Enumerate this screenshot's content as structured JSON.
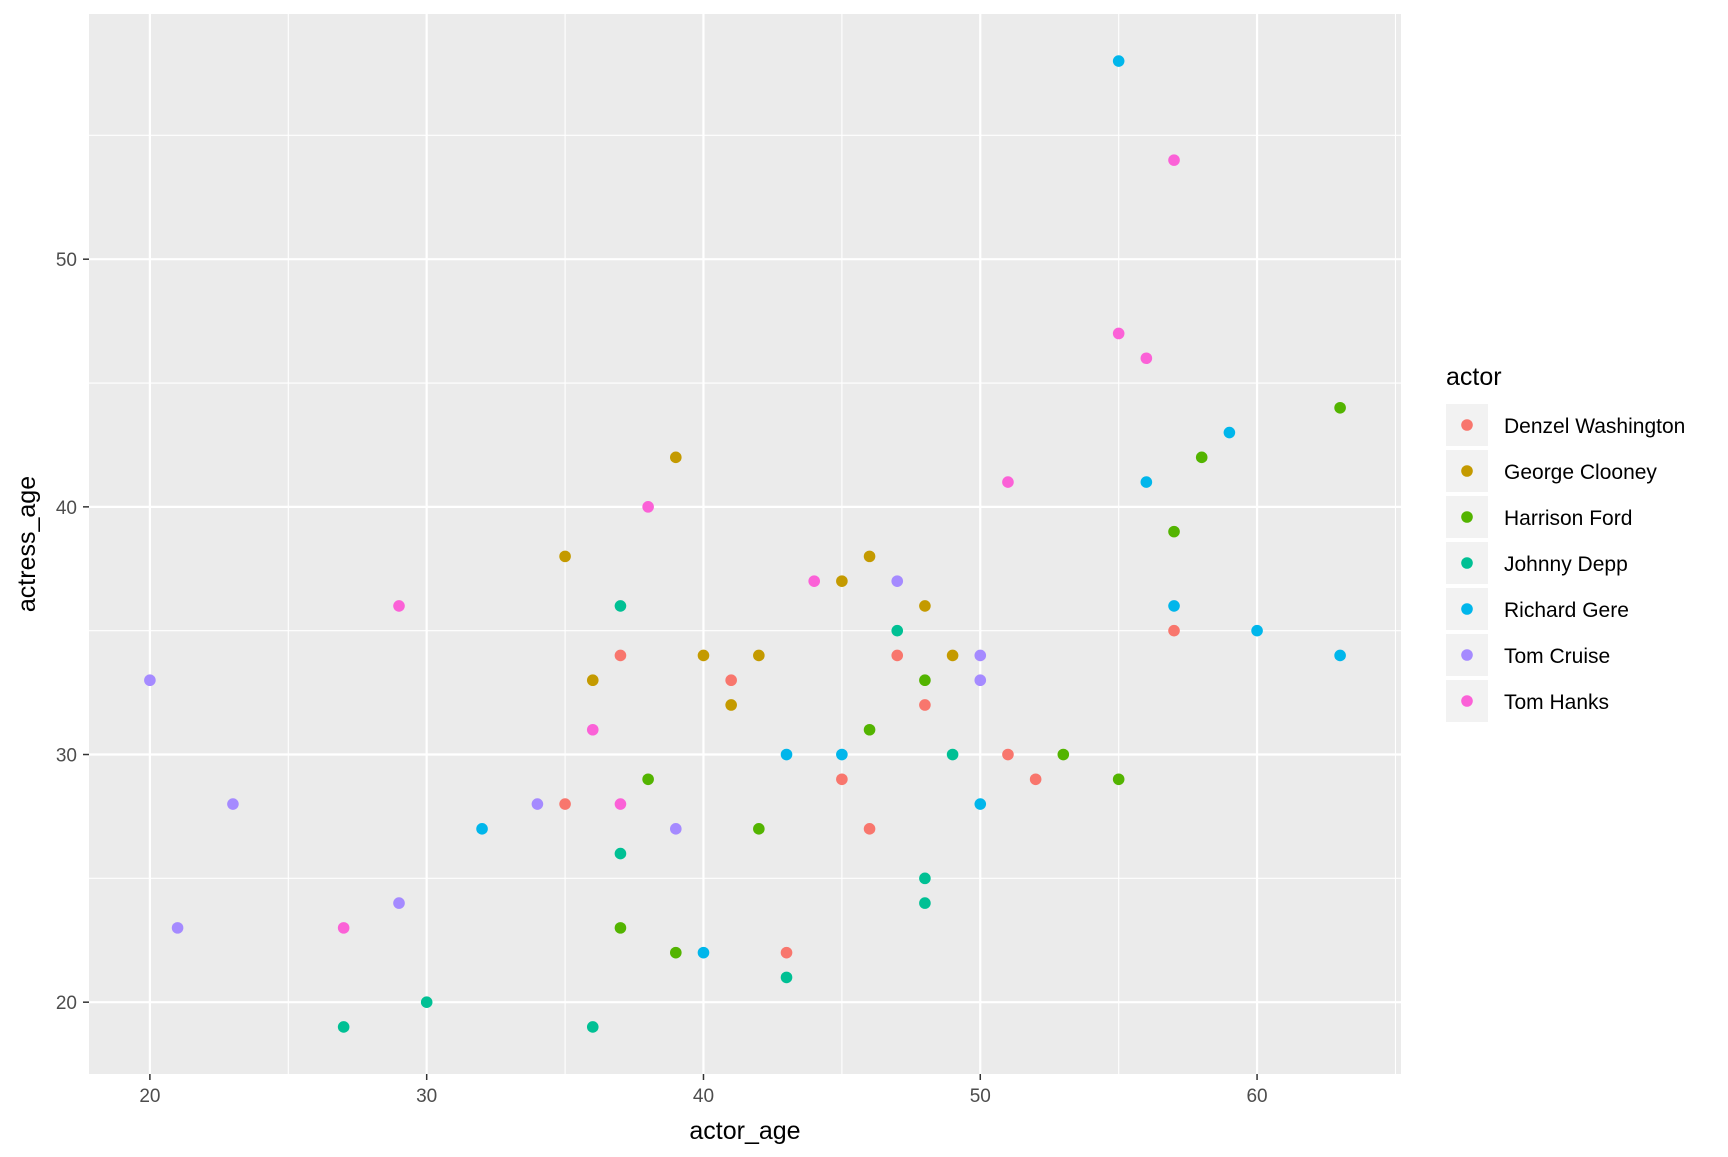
{
  "chart_data": {
    "type": "scatter",
    "xlabel": "actor_age",
    "ylabel": "actress_age",
    "xlim": [
      17.8,
      65.2
    ],
    "ylim": [
      17.1,
      59.9
    ],
    "x_ticks": [
      20,
      30,
      40,
      50,
      60
    ],
    "y_ticks": [
      20,
      30,
      40,
      50
    ],
    "grid": true,
    "legend": {
      "title": "actor",
      "position": "right"
    },
    "series": [
      {
        "name": "Denzel Washington",
        "color": "#F8766D",
        "points": [
          [
            35,
            28
          ],
          [
            37,
            34
          ],
          [
            41,
            33
          ],
          [
            43,
            22
          ],
          [
            45,
            29
          ],
          [
            46,
            27
          ],
          [
            47,
            34
          ],
          [
            48,
            32
          ],
          [
            51,
            30
          ],
          [
            52,
            29
          ],
          [
            57,
            35
          ]
        ]
      },
      {
        "name": "George Clooney",
        "color": "#C49A00",
        "points": [
          [
            35,
            38
          ],
          [
            36,
            33
          ],
          [
            39,
            42
          ],
          [
            40,
            34
          ],
          [
            41,
            32
          ],
          [
            42,
            34
          ],
          [
            45,
            37
          ],
          [
            46,
            38
          ],
          [
            48,
            36
          ],
          [
            49,
            34
          ]
        ]
      },
      {
        "name": "Harrison Ford",
        "color": "#53B400",
        "points": [
          [
            37,
            23
          ],
          [
            38,
            29
          ],
          [
            39,
            22
          ],
          [
            42,
            27
          ],
          [
            46,
            31
          ],
          [
            48,
            33
          ],
          [
            53,
            30
          ],
          [
            55,
            29
          ],
          [
            57,
            39
          ],
          [
            58,
            42
          ],
          [
            63,
            44
          ]
        ]
      },
      {
        "name": "Johnny Depp",
        "color": "#00C094",
        "points": [
          [
            27,
            19
          ],
          [
            30,
            20
          ],
          [
            36,
            19
          ],
          [
            37,
            36
          ],
          [
            37,
            26
          ],
          [
            43,
            21
          ],
          [
            47,
            35
          ],
          [
            48,
            25
          ],
          [
            48,
            24
          ],
          [
            49,
            30
          ]
        ]
      },
      {
        "name": "Richard Gere",
        "color": "#00B6EB",
        "points": [
          [
            32,
            27
          ],
          [
            40,
            22
          ],
          [
            43,
            30
          ],
          [
            45,
            30
          ],
          [
            50,
            28
          ],
          [
            55,
            58
          ],
          [
            56,
            41
          ],
          [
            57,
            36
          ],
          [
            59,
            43
          ],
          [
            60,
            35
          ],
          [
            63,
            34
          ]
        ]
      },
      {
        "name": "Tom Cruise",
        "color": "#A58AFF",
        "points": [
          [
            20,
            33
          ],
          [
            21,
            23
          ],
          [
            23,
            28
          ],
          [
            29,
            24
          ],
          [
            34,
            28
          ],
          [
            39,
            27
          ],
          [
            47,
            37
          ],
          [
            50,
            34
          ],
          [
            50,
            33
          ]
        ]
      },
      {
        "name": "Tom Hanks",
        "color": "#FB61D7",
        "points": [
          [
            27,
            23
          ],
          [
            29,
            36
          ],
          [
            36,
            31
          ],
          [
            37,
            28
          ],
          [
            38,
            40
          ],
          [
            44,
            37
          ],
          [
            51,
            41
          ],
          [
            55,
            47
          ],
          [
            56,
            46
          ],
          [
            57,
            54
          ]
        ]
      }
    ]
  }
}
